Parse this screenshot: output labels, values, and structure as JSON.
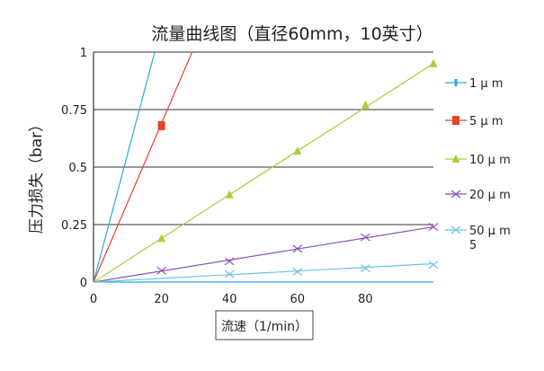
{
  "chart_data": {
    "type": "line",
    "title": "流量曲线图（直径60mm，10英寸）",
    "xlabel": "流速（1/min）",
    "ylabel": "压力损失（bar）",
    "xlim": [
      0,
      100
    ],
    "ylim": [
      0,
      1
    ],
    "x_ticks": [
      "0",
      "20",
      "40",
      "60",
      "80"
    ],
    "y_ticks": [
      "0",
      "0.25",
      "0.5",
      "0.75",
      "1"
    ],
    "grid": "horizontal",
    "legend_position": "right",
    "series": [
      {
        "name": "1 μ m",
        "color": "#2aa8dc",
        "marker": "bar",
        "line": [
          [
            0,
            0
          ],
          [
            18,
            1
          ]
        ],
        "points": []
      },
      {
        "name": "5 μ m",
        "color": "#e8412b",
        "marker": "square",
        "line": [
          [
            0,
            0
          ],
          [
            29,
            1
          ]
        ],
        "points": [
          [
            20,
            0.68
          ]
        ]
      },
      {
        "name": "10 μ m",
        "color": "#a6d03a",
        "marker": "triangle",
        "line": [
          [
            0,
            0
          ],
          [
            100,
            0.95
          ]
        ],
        "points": [
          [
            20,
            0.19
          ],
          [
            40,
            0.38
          ],
          [
            60,
            0.57
          ],
          [
            80,
            0.77
          ],
          [
            100,
            0.95
          ]
        ]
      },
      {
        "name": "20 μ m",
        "color": "#8c4fb8",
        "marker": "x",
        "line": [
          [
            0,
            0
          ],
          [
            100,
            0.24
          ]
        ],
        "points": [
          [
            20,
            0.05
          ],
          [
            40,
            0.09
          ],
          [
            60,
            0.145
          ],
          [
            80,
            0.195
          ],
          [
            100,
            0.24
          ]
        ]
      },
      {
        "name": "50 μ m\n5",
        "color": "#6ec3e6",
        "marker": "x",
        "line": [
          [
            0,
            0
          ],
          [
            100,
            0.08
          ]
        ],
        "points": [
          [
            40,
            0.035
          ],
          [
            60,
            0.045
          ],
          [
            80,
            0.06
          ],
          [
            100,
            0.075
          ]
        ]
      }
    ],
    "reference_line": {
      "y": 0,
      "x_end": 100,
      "color": "#2aa8dc"
    }
  }
}
